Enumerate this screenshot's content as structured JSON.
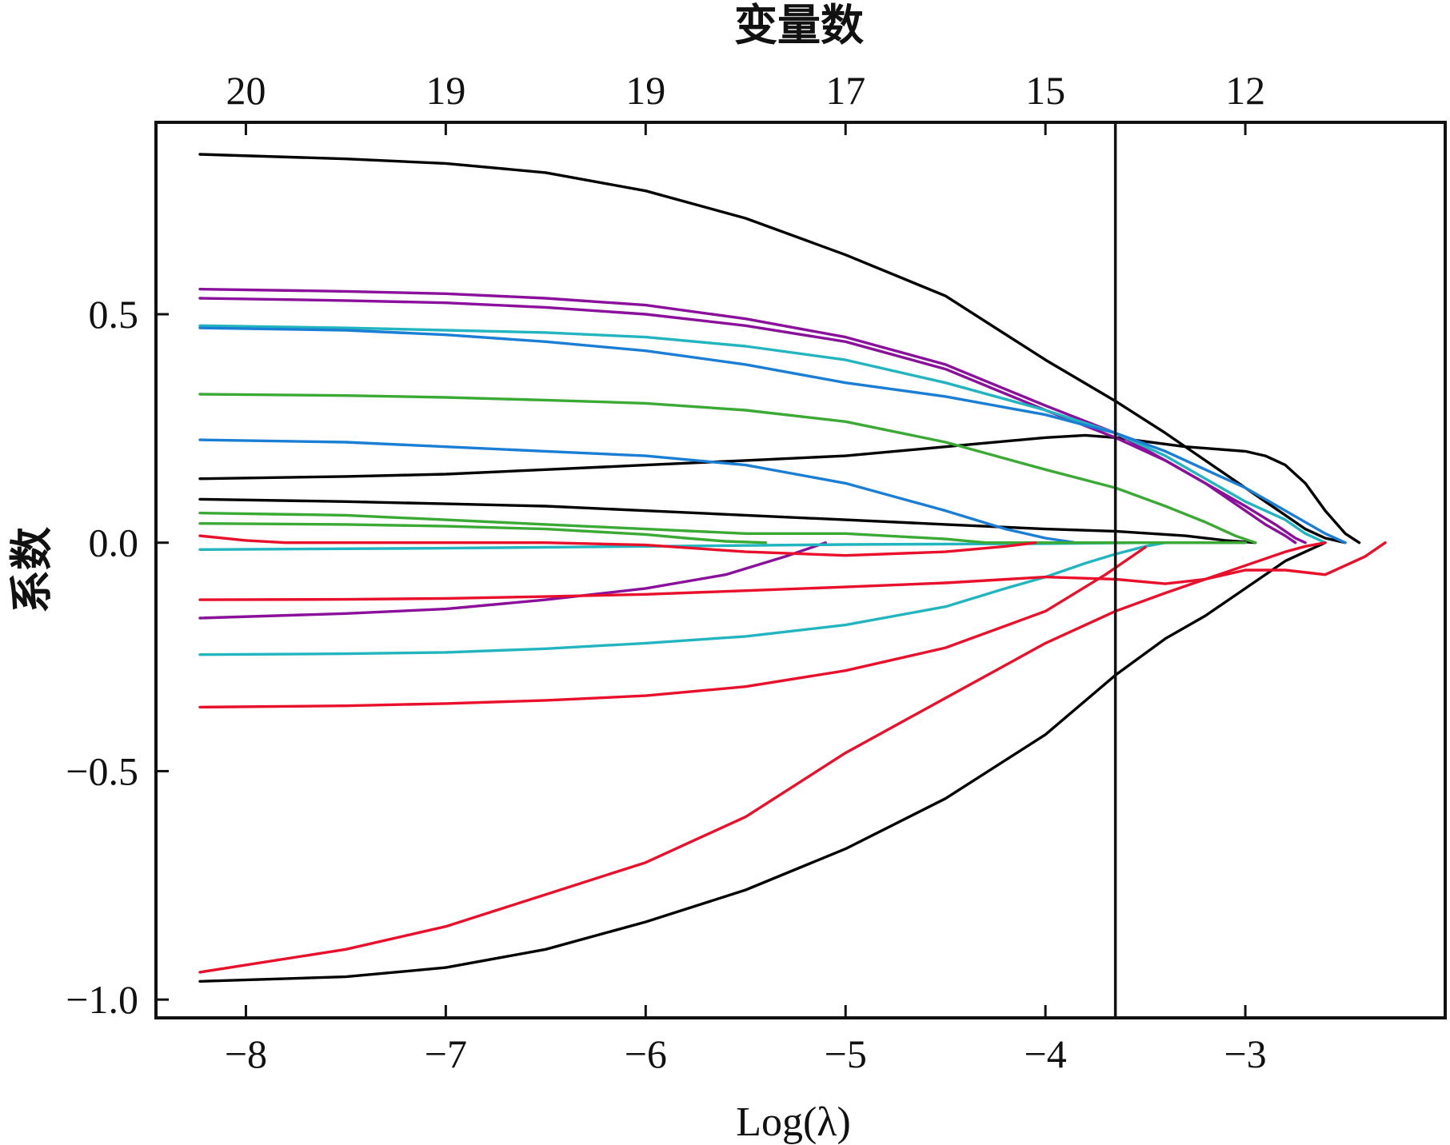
{
  "chart_data": {
    "type": "line",
    "title": "",
    "xlabel": "Log(λ)",
    "ylabel": "系数",
    "top_axis_label": "变量数",
    "xlim": [
      -8.45,
      -2.0
    ],
    "ylim": [
      -1.04,
      0.92
    ],
    "x_ticks": [
      -8,
      -7,
      -6,
      -5,
      -4,
      -3
    ],
    "x_tick_labels": [
      "−8",
      "−7",
      "−6",
      "−5",
      "−4",
      "−3"
    ],
    "y_ticks": [
      0.5,
      0.0,
      -0.5,
      -1.0
    ],
    "y_tick_labels": [
      "0.5",
      "0.0",
      "−0.5",
      "−1.0"
    ],
    "top_ticks": [
      -8,
      -7,
      -6,
      -5,
      -4,
      -3
    ],
    "top_tick_labels": [
      "20",
      "19",
      "19",
      "17",
      "15",
      "12"
    ],
    "vline_x": -3.65,
    "grid": false,
    "legend": "none",
    "series": [
      {
        "color": "#000000",
        "x": [
          -8.23,
          -7.5,
          -7.0,
          -6.5,
          -6.0,
          -5.5,
          -5.0,
          -4.5,
          -4.0,
          -3.65,
          -3.4,
          -3.2,
          -3.0,
          -2.9,
          -2.8,
          -2.7,
          -2.6,
          -2.5
        ],
        "y": [
          0.85,
          0.84,
          0.83,
          0.81,
          0.77,
          0.71,
          0.63,
          0.54,
          0.4,
          0.31,
          0.24,
          0.18,
          0.12,
          0.09,
          0.06,
          0.03,
          0.01,
          0.0
        ]
      },
      {
        "color": "#000000",
        "x": [
          -8.23,
          -7.5,
          -7.0,
          -6.5,
          -6.0,
          -5.5,
          -5.0,
          -4.5,
          -4.0,
          -3.8,
          -3.65,
          -3.3,
          -3.0,
          -2.9,
          -2.8,
          -2.7,
          -2.6,
          -2.5,
          -2.43
        ],
        "y": [
          0.14,
          0.145,
          0.15,
          0.16,
          0.17,
          0.18,
          0.19,
          0.21,
          0.23,
          0.235,
          0.23,
          0.21,
          0.2,
          0.19,
          0.17,
          0.13,
          0.07,
          0.02,
          0.0
        ]
      },
      {
        "color": "#000000",
        "x": [
          -8.23,
          -7.5,
          -7.0,
          -6.5,
          -6.0,
          -5.5,
          -5.0,
          -4.5,
          -4.0,
          -3.65,
          -3.3,
          -3.1,
          -2.95
        ],
        "y": [
          0.095,
          0.09,
          0.085,
          0.08,
          0.07,
          0.06,
          0.05,
          0.04,
          0.03,
          0.025,
          0.015,
          0.005,
          0.0
        ]
      },
      {
        "color": "#000000",
        "x": [
          -8.23,
          -7.5,
          -7.0,
          -6.5,
          -6.0,
          -5.5,
          -5.0,
          -4.5,
          -4.0,
          -3.65,
          -3.4,
          -3.2,
          -3.0,
          -2.8,
          -2.7,
          -2.6
        ],
        "y": [
          -0.96,
          -0.95,
          -0.93,
          -0.89,
          -0.83,
          -0.76,
          -0.67,
          -0.56,
          -0.42,
          -0.29,
          -0.21,
          -0.16,
          -0.1,
          -0.04,
          -0.02,
          0.0
        ]
      },
      {
        "color": "#8a0f9a",
        "x": [
          -8.23,
          -7.5,
          -7.0,
          -6.5,
          -6.0,
          -5.5,
          -5.0,
          -4.5,
          -4.0,
          -3.65,
          -3.4,
          -3.2,
          -3.0,
          -2.9,
          -2.8,
          -2.75
        ],
        "y": [
          0.555,
          0.55,
          0.545,
          0.535,
          0.52,
          0.49,
          0.45,
          0.39,
          0.3,
          0.24,
          0.18,
          0.13,
          0.07,
          0.04,
          0.015,
          0.0
        ]
      },
      {
        "color": "#8a0f9a",
        "x": [
          -8.23,
          -7.5,
          -7.0,
          -6.5,
          -6.0,
          -5.5,
          -5.0,
          -4.5,
          -4.0,
          -3.65,
          -3.4,
          -3.2,
          -3.0,
          -2.85,
          -2.75,
          -2.7
        ],
        "y": [
          0.535,
          0.53,
          0.525,
          0.515,
          0.5,
          0.475,
          0.44,
          0.38,
          0.29,
          0.23,
          0.18,
          0.13,
          0.08,
          0.04,
          0.01,
          0.0
        ]
      },
      {
        "color": "#8a0f9a",
        "x": [
          -8.23,
          -7.5,
          -7.0,
          -6.5,
          -6.0,
          -5.6,
          -5.3,
          -5.1
        ],
        "y": [
          -0.165,
          -0.155,
          -0.145,
          -0.125,
          -0.1,
          -0.07,
          -0.03,
          0.0
        ]
      },
      {
        "color": "#22b5c0",
        "x": [
          -8.23,
          -7.5,
          -7.0,
          -6.5,
          -6.0,
          -5.5,
          -5.0,
          -4.5,
          -4.0,
          -3.65,
          -3.4,
          -3.2,
          -3.0,
          -2.8,
          -2.7,
          -2.6
        ],
        "y": [
          0.475,
          0.47,
          0.465,
          0.46,
          0.45,
          0.43,
          0.4,
          0.35,
          0.29,
          0.24,
          0.19,
          0.14,
          0.09,
          0.05,
          0.02,
          0.0
        ]
      },
      {
        "color": "#22b5c0",
        "x": [
          -8.23,
          -7.5,
          -7.0,
          -6.5,
          -6.0,
          -5.5,
          -5.0,
          -4.5,
          -4.2,
          -4.0,
          -3.8,
          -3.65,
          -3.5,
          -3.4
        ],
        "y": [
          -0.245,
          -0.243,
          -0.24,
          -0.232,
          -0.22,
          -0.205,
          -0.18,
          -0.14,
          -0.1,
          -0.075,
          -0.045,
          -0.025,
          -0.008,
          0.0
        ]
      },
      {
        "color": "#22b5c0",
        "x": [
          -8.23,
          -7.0,
          -6.0,
          -5.0,
          -4.0,
          -3.5,
          -3.0
        ],
        "y": [
          -0.015,
          -0.012,
          -0.008,
          -0.004,
          -0.002,
          0.0,
          0.0
        ]
      },
      {
        "color": "#1a7fd4",
        "x": [
          -8.23,
          -7.5,
          -7.0,
          -6.5,
          -6.0,
          -5.5,
          -5.0,
          -4.5,
          -4.0,
          -3.65,
          -3.4,
          -3.2,
          -3.0,
          -2.8,
          -2.6,
          -2.5
        ],
        "y": [
          0.47,
          0.465,
          0.455,
          0.44,
          0.42,
          0.39,
          0.35,
          0.32,
          0.28,
          0.24,
          0.2,
          0.16,
          0.12,
          0.07,
          0.02,
          0.0
        ]
      },
      {
        "color": "#1a7fd4",
        "x": [
          -8.23,
          -7.5,
          -7.0,
          -6.5,
          -6.0,
          -5.5,
          -5.0,
          -4.5,
          -4.2,
          -4.0,
          -3.85
        ],
        "y": [
          0.225,
          0.22,
          0.21,
          0.2,
          0.19,
          0.17,
          0.13,
          0.07,
          0.03,
          0.01,
          0.0
        ]
      },
      {
        "color": "#3aaa35",
        "x": [
          -8.23,
          -7.5,
          -7.0,
          -6.5,
          -6.0,
          -5.5,
          -5.0,
          -4.5,
          -4.0,
          -3.65,
          -3.4,
          -3.2,
          -3.05,
          -2.95
        ],
        "y": [
          0.325,
          0.322,
          0.318,
          0.312,
          0.305,
          0.29,
          0.265,
          0.22,
          0.16,
          0.12,
          0.08,
          0.045,
          0.015,
          0.0
        ]
      },
      {
        "color": "#3aaa35",
        "x": [
          -8.23,
          -7.5,
          -7.0,
          -6.5,
          -6.0,
          -5.5,
          -5.0,
          -4.5,
          -4.3,
          -3.0
        ],
        "y": [
          0.065,
          0.06,
          0.05,
          0.04,
          0.03,
          0.02,
          0.02,
          0.008,
          0.0,
          0.0
        ]
      },
      {
        "color": "#3aaa35",
        "x": [
          -8.23,
          -7.5,
          -7.0,
          -6.5,
          -6.0,
          -5.8,
          -5.6,
          -5.4
        ],
        "y": [
          0.042,
          0.04,
          0.036,
          0.03,
          0.018,
          0.01,
          0.003,
          0.0
        ]
      },
      {
        "color": "#e8102a",
        "x": [
          -8.23,
          -8.0,
          -7.8,
          -7.5,
          -7.0,
          -6.5,
          -6.0,
          -5.5,
          -5.0,
          -4.5,
          -4.2,
          -4.05
        ],
        "y": [
          0.015,
          0.005,
          0.0,
          0.0,
          0.0,
          0.0,
          -0.005,
          -0.02,
          -0.028,
          -0.02,
          -0.008,
          0.0
        ]
      },
      {
        "color": "#e8102a",
        "x": [
          -8.23,
          -7.5,
          -7.0,
          -6.5,
          -6.0,
          -5.5,
          -5.0,
          -4.5,
          -4.0,
          -3.65,
          -3.4,
          -3.2,
          -3.0,
          -2.8,
          -2.6,
          -2.5,
          -2.4,
          -2.3
        ],
        "y": [
          -0.125,
          -0.124,
          -0.122,
          -0.118,
          -0.113,
          -0.105,
          -0.097,
          -0.088,
          -0.075,
          -0.08,
          -0.09,
          -0.08,
          -0.06,
          -0.06,
          -0.07,
          -0.05,
          -0.03,
          0.0
        ]
      },
      {
        "color": "#e8102a",
        "x": [
          -8.23,
          -7.5,
          -7.0,
          -6.5,
          -6.0,
          -5.5,
          -5.0,
          -4.5,
          -4.0,
          -3.7,
          -3.5
        ],
        "y": [
          -0.36,
          -0.357,
          -0.352,
          -0.345,
          -0.335,
          -0.315,
          -0.28,
          -0.23,
          -0.15,
          -0.07,
          -0.01
        ]
      },
      {
        "color": "#e8102a",
        "x": [
          -8.23,
          -7.5,
          -7.0,
          -6.5,
          -6.0,
          -5.5,
          -5.0,
          -4.5,
          -4.0,
          -3.65,
          -3.4,
          -3.2,
          -3.0,
          -2.8,
          -2.7,
          -2.6
        ],
        "y": [
          -0.94,
          -0.89,
          -0.84,
          -0.77,
          -0.7,
          -0.6,
          -0.46,
          -0.34,
          -0.22,
          -0.15,
          -0.11,
          -0.08,
          -0.05,
          -0.02,
          -0.008,
          0.0
        ]
      }
    ]
  }
}
